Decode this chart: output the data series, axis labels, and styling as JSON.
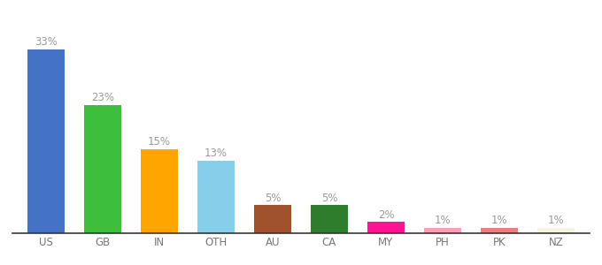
{
  "categories": [
    "US",
    "GB",
    "IN",
    "OTH",
    "AU",
    "CA",
    "MY",
    "PH",
    "PK",
    "NZ"
  ],
  "values": [
    33,
    23,
    15,
    13,
    5,
    5,
    2,
    1,
    1,
    1
  ],
  "bar_colors": [
    "#4472C4",
    "#3DBE3D",
    "#FFA500",
    "#87CEEB",
    "#A0522D",
    "#2D7D2D",
    "#FF1493",
    "#FF9EB5",
    "#E88080",
    "#F5F5DC"
  ],
  "labels": [
    "33%",
    "23%",
    "15%",
    "13%",
    "5%",
    "5%",
    "2%",
    "1%",
    "1%",
    "1%"
  ],
  "ylim": [
    0,
    38
  ],
  "background_color": "#ffffff",
  "label_color": "#999999",
  "label_fontsize": 8.5,
  "tick_fontsize": 8.5,
  "bar_width": 0.65
}
